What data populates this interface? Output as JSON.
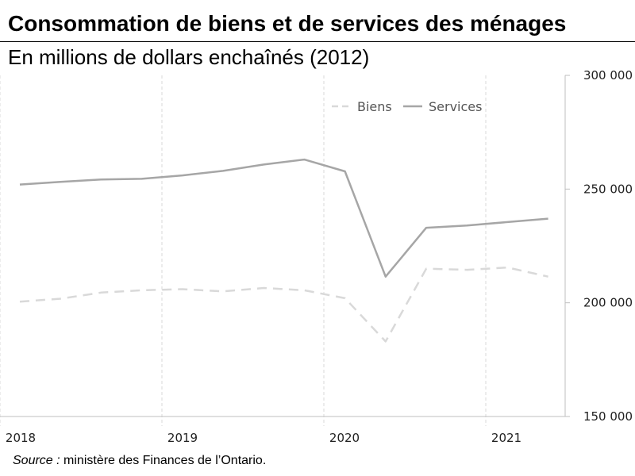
{
  "title": "Consommation de biens et de services des ménages",
  "subtitle": "En millions de dollars enchaînés (2012)",
  "source": {
    "label": "Source :",
    "text": "ministère des Finances de l’Ontario."
  },
  "colors": {
    "services": "#a6a6a6",
    "biens": "#d9d9d9",
    "grid": "#d9d9d9",
    "axis": "#bfbfbf"
  },
  "chart_data": {
    "type": "line",
    "title": "Consommation de biens et de services des ménages",
    "subtitle": "En millions de dollars enchaînés (2012)",
    "xlabel": "",
    "ylabel": "",
    "x": [
      "2018T1",
      "2018T2",
      "2018T3",
      "2018T4",
      "2019T1",
      "2019T2",
      "2019T3",
      "2019T4",
      "2020T1",
      "2020T2",
      "2020T3",
      "2020T4",
      "2021T1",
      "2021T2"
    ],
    "x_ticks": [
      "2018",
      "2019",
      "2020",
      "2021"
    ],
    "ylim": [
      150000,
      300000
    ],
    "y_ticks": [
      "150 000",
      "200 000",
      "250 000",
      "300 000"
    ],
    "y_tick_values": [
      150000,
      200000,
      250000,
      300000
    ],
    "legend_position": "top-center",
    "grid": "vertical dashed",
    "series": [
      {
        "name": "Biens",
        "style": "dashed",
        "values": [
          200500,
          201800,
          204500,
          205500,
          206000,
          205000,
          206500,
          205500,
          202000,
          183000,
          215000,
          214500,
          215500,
          211500
        ]
      },
      {
        "name": "Services",
        "style": "solid",
        "values": [
          252000,
          253200,
          254200,
          254500,
          256000,
          258000,
          260800,
          263000,
          257800,
          211500,
          233000,
          234000,
          235500,
          237000
        ]
      }
    ]
  }
}
